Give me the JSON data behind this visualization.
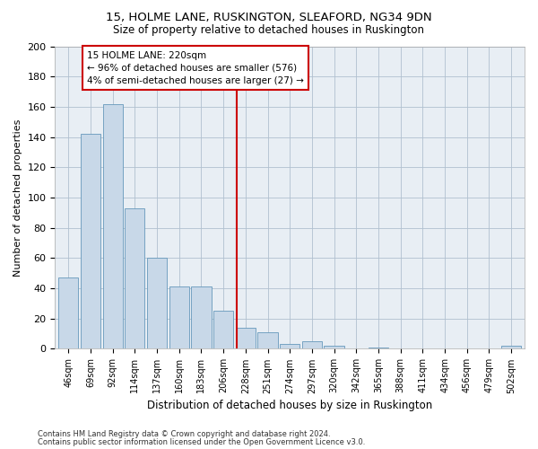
{
  "title_line1": "15, HOLME LANE, RUSKINGTON, SLEAFORD, NG34 9DN",
  "title_line2": "Size of property relative to detached houses in Ruskington",
  "xlabel": "Distribution of detached houses by size in Ruskington",
  "ylabel": "Number of detached properties",
  "bar_labels": [
    "46sqm",
    "69sqm",
    "92sqm",
    "114sqm",
    "137sqm",
    "160sqm",
    "183sqm",
    "206sqm",
    "228sqm",
    "251sqm",
    "274sqm",
    "297sqm",
    "320sqm",
    "342sqm",
    "365sqm",
    "388sqm",
    "411sqm",
    "434sqm",
    "456sqm",
    "479sqm",
    "502sqm"
  ],
  "bar_values": [
    47,
    142,
    162,
    93,
    60,
    41,
    41,
    25,
    14,
    11,
    3,
    5,
    2,
    0,
    1,
    0,
    0,
    0,
    0,
    0,
    2
  ],
  "bar_color": "#c8d8e8",
  "bar_edge_color": "#6699bb",
  "vertical_line_color": "#cc0000",
  "annotation_text": "15 HOLME LANE: 220sqm\n← 96% of detached houses are smaller (576)\n4% of semi-detached houses are larger (27) →",
  "annotation_box_color": "#cc0000",
  "ylim": [
    0,
    200
  ],
  "yticks": [
    0,
    20,
    40,
    60,
    80,
    100,
    120,
    140,
    160,
    180,
    200
  ],
  "grid_color": "#b0c0d0",
  "bg_color": "#e8eef4",
  "footer_line1": "Contains HM Land Registry data © Crown copyright and database right 2024.",
  "footer_line2": "Contains public sector information licensed under the Open Government Licence v3.0."
}
